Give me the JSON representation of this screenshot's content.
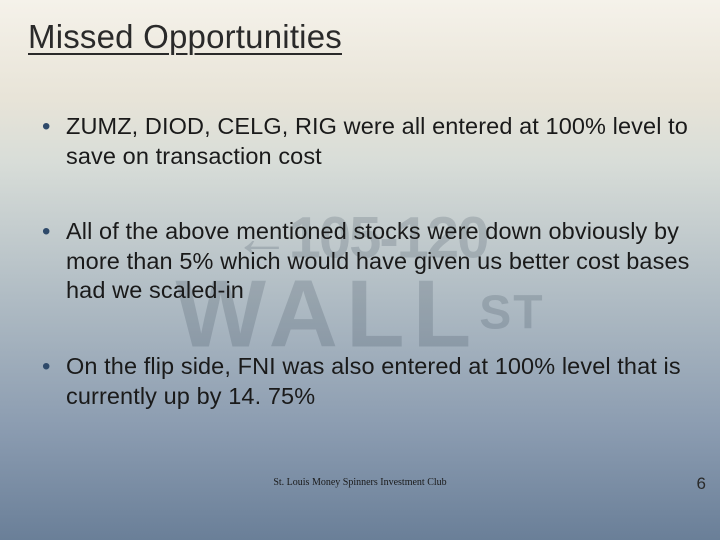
{
  "title": "Missed Opportunities",
  "bullets": [
    "ZUMZ, DIOD, CELG, RIG were all entered at 100% level to save on transaction cost",
    "All of the above mentioned stocks were down obviously by more than 5% which would have given us better cost bases had we scaled-in",
    "On the flip side, FNI was also entered at 100% level that is currently up by 14. 75%"
  ],
  "footer": "St. Louis Money Spinners Investment Club",
  "pageNumber": "6",
  "background": {
    "arrowNum": "←105-120",
    "wall": "WALL",
    "st": "ST"
  },
  "colors": {
    "titleText": "#2a2a2a",
    "bulletMarker": "#2f4a6a",
    "bodyText": "#1a1a1a"
  }
}
